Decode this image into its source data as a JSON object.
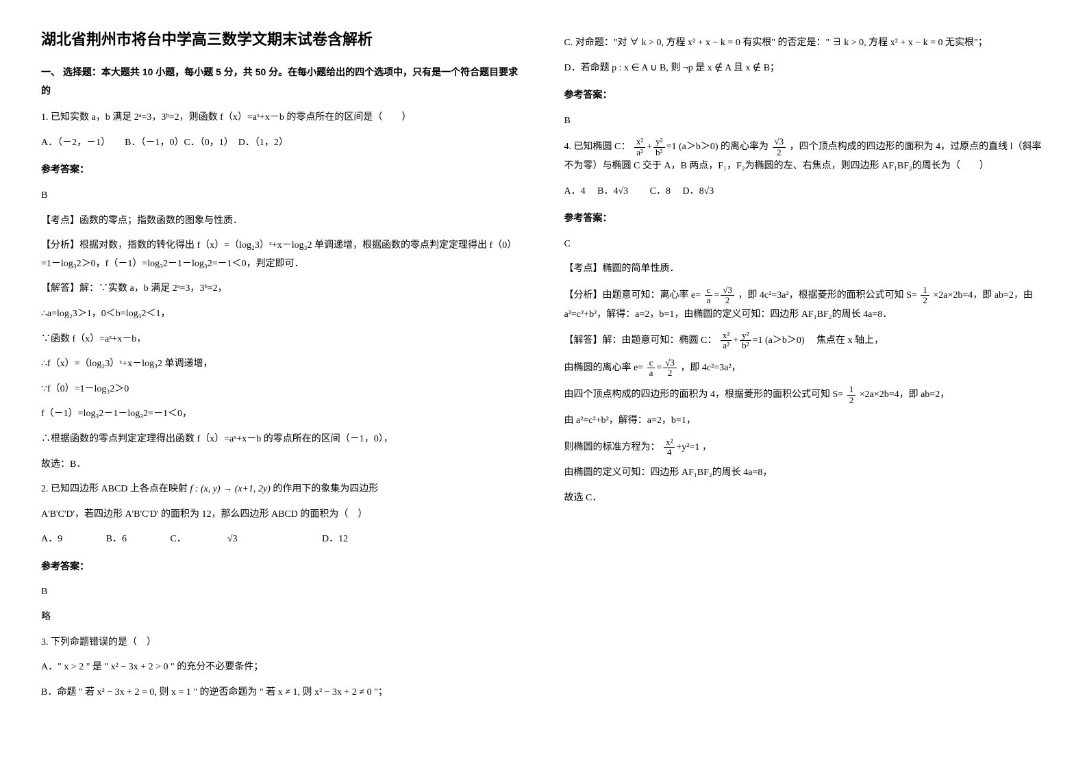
{
  "title": "湖北省荆州市将台中学高三数学文期末试卷含解析",
  "section1": "一、 选择题：本大题共 10 小题，每小题 5 分，共 50 分。在每小题给出的四个选项中，只有是一个符合题目要求的",
  "q1": {
    "stem": "1. 已知实数 a，b 满足 2ᵃ=3，3ᵇ=2，则函数 f（x）=aˣ+x－b 的零点所在的区间是（　　）",
    "opts": "A．（－2，－1）　　B．（－1，0）C．（0，1）　D．（1，2）",
    "ans_label": "参考答案：",
    "ans": "B",
    "kd": "【考点】函数的零点；指数函数的图象与性质．",
    "fx": "【分析】根据对数，指数的转化得出 f（x）=（log₂3）ˣ+x－log₃2 单调递增，根据函数的零点判定定理得出 f（0）=1－log₃2＞0，f（－1）=log₃2－1－log₃2=－1＜0，判定即可．",
    "jd1": "【解答】解：∵实数 a，b 满足 2ᵃ=3，3ᵇ=2，",
    "jd2": "∴a=log₂3＞1，0＜b=log₃2＜1，",
    "jd3": "∵函数 f（x）=aˣ+x－b，",
    "jd4": "∴f（x）=（log₂3）ˣ+x－log₃2 单调递增，",
    "jd5": "∵f（0）=1－log₃2＞0",
    "jd6": "f（－1）=log₃2－1－log₃2=－1＜0，",
    "jd7": "∴根据函数的零点判定定理得出函数 f（x）=aˣ+x－b 的零点所在的区间（－1，0），",
    "jd8": "故选：B．"
  },
  "q2": {
    "stem_a": "2. 已知四边形 ABCD 上各点在映射 ",
    "map": "f : (x, y) → (x+1, 2y)",
    "stem_b": " 的作用下的象集为四边形",
    "stem_c": "A'B'C'D'，若四边形 A'B'C'D' 的面积为 12，那么四边形 ABCD 的面积为（　）",
    "optA": "A．9",
    "optB": "B．6",
    "optC_pre": "C．",
    "optC_val": "√3",
    "optD": "D．12",
    "ans_label": "参考答案：",
    "ans": "B",
    "略": "略"
  },
  "q3": {
    "stem": "3. 下列命题错误的是（　）",
    "optA": "A．\" x > 2 \" 是 \" x² − 3x + 2 > 0 \" 的充分不必要条件；",
    "optB": "B．命题 \" 若 x² − 3x + 2 = 0, 则 x = 1 \" 的逆否命题为 \" 若 x ≠ 1, 则 x² − 3x + 2 ≠ 0 \"；",
    "optC": "C. 对命题：\"对 ∀ k > 0, 方程 x² + x − k = 0 有实根\" 的否定是：\" ∃ k > 0, 方程 x² + x − k = 0 无实根\"；",
    "optD": "D．若命题 p : x ∈ A ∪ B, 则 ¬p 是 x ∉ A 且 x ∉ B；",
    "ans_label": "参考答案：",
    "ans": "B"
  },
  "q4": {
    "stem_a": "4. 已知椭圆 C：",
    "eq1": "x²/a² + y²/b² = 1 (a＞b＞0)",
    "stem_b": "的离心率为",
    "ecc": "√3/2",
    "stem_c": "，四个顶点构成的四边形的面积为 4，过原点的直线 l（斜率不为零）与椭圆 C 交于 A，B 两点，F₁，F₂为椭圆的左、右焦点，则四边形 AF₁BF₂的周长为（　　）",
    "optA": "A．4",
    "optB_pre": "B．",
    "optB_val": "4√3",
    "optC": "C．8",
    "optD_pre": "D．",
    "optD_val": "8√3",
    "ans_label": "参考答案：",
    "ans": "C",
    "kd": "【考点】椭圆的简单性质．",
    "fx_a": "【分析】由题意可知：离心率 e=",
    "fx_b": "，即 4c²=3a²，根据菱形的面积公式可知 S=",
    "fx_c": "×2a×2b=4，即 ab=2，由 a²=c²+b²，解得：a=2，b=1，由椭圆的定义可知：四边形 AF₁BF₂的周长 4a=8．",
    "jd1_a": "【解答】解：由题意可知：椭圆 C：",
    "jd1_b": "　焦点在 x 轴上，",
    "jd2_a": "由椭圆的离心率 e=",
    "jd2_b": "，即 4c²=3a²，",
    "jd3_a": "由四个顶点构成的四边形的面积为 4，根据菱形的面积公式可知 S=",
    "jd3_b": "×2a×2b=4，即 ab=2，",
    "jd4": "由 a²=c²+b²，解得：a=2，b=1，",
    "jd5_a": "则椭圆的标准方程为：",
    "jd5_b": "，",
    "jd6": "由椭圆的定义可知：四边形 AF₁BF₂的周长 4a=8，",
    "jd7": "故选 C．"
  }
}
